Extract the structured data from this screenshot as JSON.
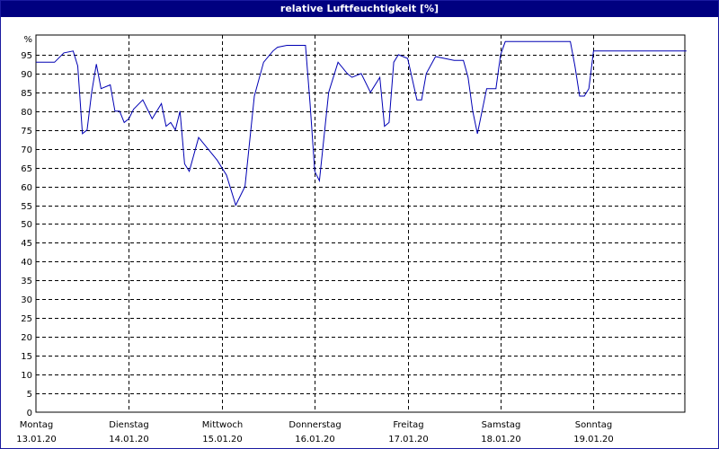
{
  "header": {
    "title": "relative Luftfeuchtigkeit [%]"
  },
  "colors": {
    "title_bar": "#000080",
    "line": "#0000b4",
    "grid": "#000000",
    "background": "#ffffff"
  },
  "chart_data": {
    "type": "line",
    "title": "relative Luftfeuchtigkeit [%]",
    "y_unit": "%",
    "ylim": [
      0,
      100
    ],
    "y_ticks": [
      0,
      5,
      10,
      15,
      20,
      25,
      30,
      35,
      40,
      45,
      50,
      55,
      60,
      65,
      70,
      75,
      80,
      85,
      90,
      95
    ],
    "grid": true,
    "xlim": [
      0,
      7
    ],
    "x_ticks": [
      {
        "x": 0,
        "day": "Montag",
        "date": "13.01.20"
      },
      {
        "x": 1,
        "day": "Dienstag",
        "date": "14.01.20"
      },
      {
        "x": 2,
        "day": "Mittwoch",
        "date": "15.01.20"
      },
      {
        "x": 3,
        "day": "Donnerstag",
        "date": "16.01.20"
      },
      {
        "x": 4,
        "day": "Freitag",
        "date": "17.01.20"
      },
      {
        "x": 5,
        "day": "Samstag",
        "date": "18.01.20"
      },
      {
        "x": 6,
        "day": "Sonntag",
        "date": "19.01.20"
      }
    ],
    "series": [
      {
        "x": [
          0,
          0.2,
          0.3,
          0.4,
          0.45,
          0.5,
          0.55,
          0.6,
          0.65,
          0.7,
          0.8,
          0.85,
          0.9,
          0.95,
          1.0,
          1.05,
          1.15,
          1.25,
          1.35,
          1.4,
          1.45,
          1.5,
          1.55,
          1.6,
          1.65,
          1.75,
          1.85,
          1.95,
          2.05,
          2.15,
          2.25,
          2.35,
          2.45,
          2.55,
          2.6,
          2.7,
          2.8,
          2.9,
          2.95,
          3.0,
          3.05,
          3.15,
          3.25,
          3.35,
          3.4,
          3.5,
          3.6,
          3.7,
          3.75,
          3.8,
          3.85,
          3.9,
          4.0,
          4.1,
          4.15,
          4.2,
          4.3,
          4.4,
          4.5,
          4.6,
          4.65,
          4.7,
          4.75,
          4.85,
          4.95,
          5.0,
          5.05,
          5.1,
          5.15,
          5.25,
          5.35,
          5.45,
          5.5,
          5.55,
          5.65,
          5.75,
          5.8,
          5.85,
          5.9,
          5.95,
          6.0,
          6.2,
          6.4,
          6.6,
          6.65,
          6.7,
          6.75,
          6.85,
          6.95,
          7.0
        ],
        "values": [
          93,
          93,
          95.5,
          96,
          92,
          74,
          75,
          85,
          92.5,
          86,
          87,
          80,
          80,
          77,
          78,
          80.5,
          83,
          78,
          82,
          76,
          77,
          75,
          80,
          66,
          64,
          73,
          70,
          67,
          63,
          55,
          60,
          84,
          93,
          96,
          97,
          97.5,
          97.5,
          97.5,
          82,
          64,
          61.5,
          85,
          93,
          90,
          89,
          90,
          85,
          89,
          76,
          77,
          93,
          95,
          94,
          83,
          83,
          90,
          94.5,
          94,
          93.5,
          93.5,
          89,
          80,
          74,
          86,
          86,
          95,
          98.5,
          98.5,
          98.5,
          98.5,
          98.5,
          98.5,
          98.5,
          98.5,
          98.5,
          98.5,
          92,
          84,
          84,
          86,
          96,
          96,
          96,
          96,
          96,
          96,
          96,
          96,
          96,
          96
        ]
      }
    ]
  }
}
